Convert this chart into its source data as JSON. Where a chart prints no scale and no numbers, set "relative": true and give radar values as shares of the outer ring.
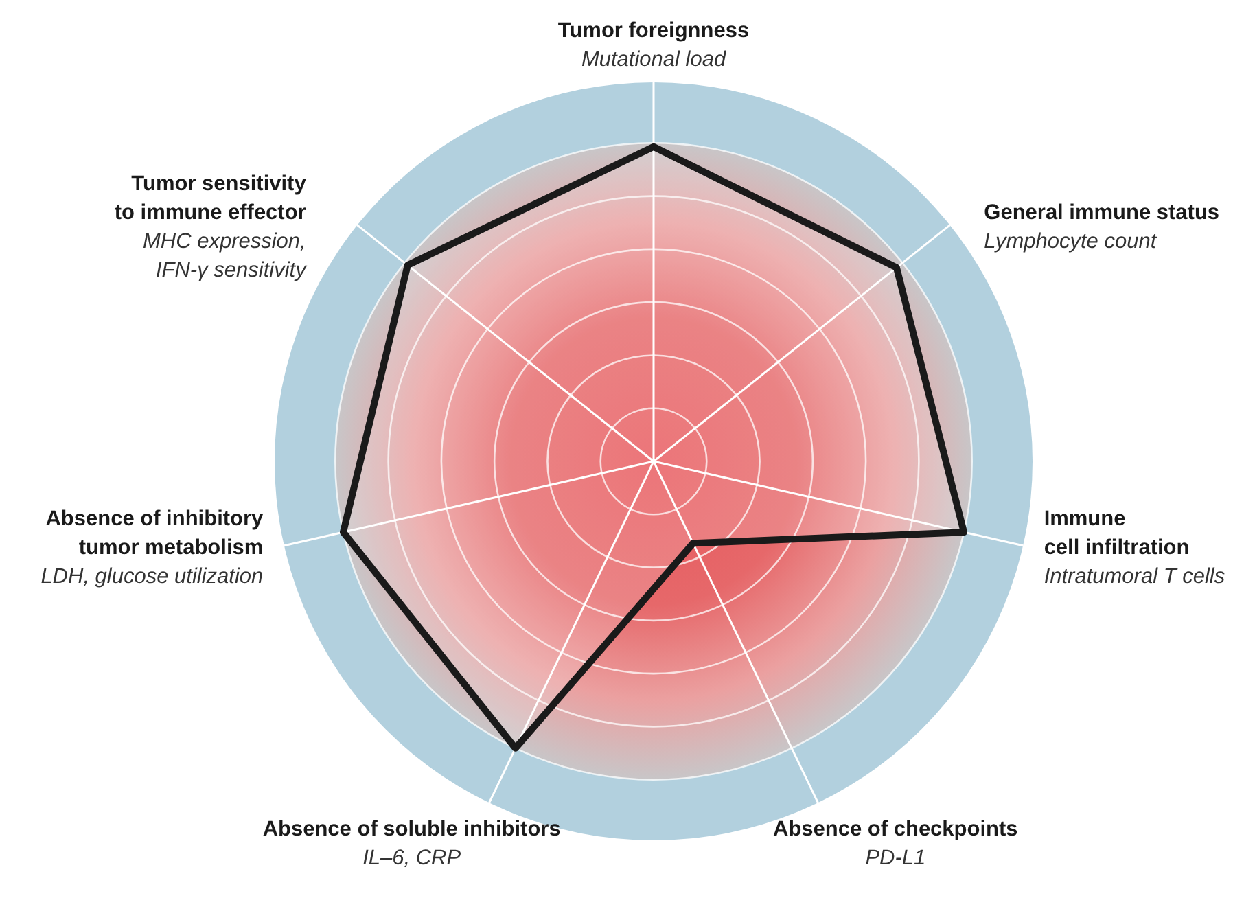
{
  "chart_data": {
    "type": "radar",
    "relative": true,
    "grid": true,
    "categories": [
      "Tumor foreignness",
      "General immune status",
      "Immune\ncell infiltration",
      "Absence of checkpoints",
      "Absence of soluble inhibitors",
      "Absence of inhibitory\ntumor metabolism",
      "Tumor sensitivity\nto immune effector"
    ],
    "annotations": [
      "Mutational load",
      "Lymphocyte count",
      "Intratumoral T cells",
      "PD-L1",
      "IL–6, CRP",
      "LDH, glucose utilization",
      "MHC expression,\nIFN-γ sensitivity"
    ],
    "series": [
      {
        "color": "#1a1a1a",
        "values": [
          0.83,
          0.82,
          0.84,
          0.24,
          0.84,
          0.84,
          0.83
        ]
      }
    ]
  }
}
